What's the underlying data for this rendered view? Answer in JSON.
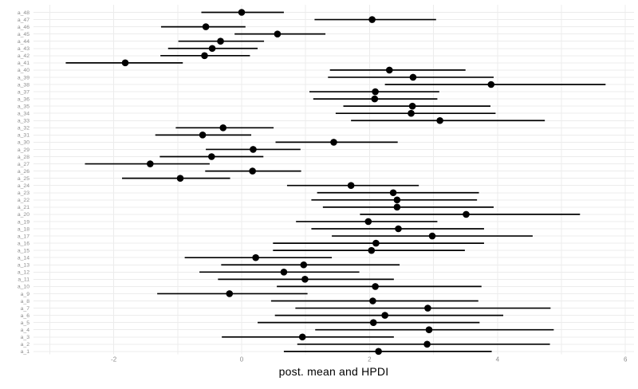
{
  "chart_data": {
    "type": "pointrange",
    "title": "",
    "xlabel": "post. mean and HPDI",
    "ylabel": "",
    "x_ticks": [
      -2,
      0,
      2,
      4,
      6
    ],
    "x_gridlines": [
      -3,
      -2,
      -1,
      0,
      1,
      2,
      3,
      4,
      5,
      6
    ],
    "xlim": [
      -3.25,
      6.13
    ],
    "legend": "none",
    "grid": "on",
    "colors": {
      "background": "#ffffff",
      "gridline": "#ececec",
      "axis_text": "#8c8c8c",
      "data": "#000000"
    },
    "params": [
      {
        "label": "a_48",
        "mean": 0.0,
        "lower": -0.63,
        "upper": 0.66
      },
      {
        "label": "a_47",
        "mean": 2.04,
        "lower": 1.14,
        "upper": 3.04
      },
      {
        "label": "a_46",
        "mean": -0.56,
        "lower": -1.26,
        "upper": 0.06
      },
      {
        "label": "a_45",
        "mean": 0.56,
        "lower": -0.11,
        "upper": 1.31
      },
      {
        "label": "a_44",
        "mean": -0.33,
        "lower": -0.99,
        "upper": 0.35
      },
      {
        "label": "a_43",
        "mean": -0.46,
        "lower": -1.15,
        "upper": 0.25
      },
      {
        "label": "a_42",
        "mean": -0.58,
        "lower": -1.27,
        "upper": 0.13
      },
      {
        "label": "a_41",
        "mean": -1.82,
        "lower": -2.75,
        "upper": -0.92
      },
      {
        "label": "a_40",
        "mean": 2.31,
        "lower": 1.38,
        "upper": 3.5
      },
      {
        "label": "a_39",
        "mean": 2.68,
        "lower": 1.35,
        "upper": 3.94
      },
      {
        "label": "a_38",
        "mean": 3.9,
        "lower": 2.24,
        "upper": 5.69
      },
      {
        "label": "a_37",
        "mean": 2.09,
        "lower": 1.06,
        "upper": 3.09
      },
      {
        "label": "a_36",
        "mean": 2.08,
        "lower": 1.12,
        "upper": 3.06
      },
      {
        "label": "a_35",
        "mean": 2.67,
        "lower": 1.59,
        "upper": 3.89
      },
      {
        "label": "a_34",
        "mean": 2.65,
        "lower": 1.47,
        "upper": 3.97
      },
      {
        "label": "a_33",
        "mean": 3.1,
        "lower": 1.71,
        "upper": 4.74
      },
      {
        "label": "a_32",
        "mean": -0.29,
        "lower": -1.03,
        "upper": 0.5
      },
      {
        "label": "a_31",
        "mean": -0.61,
        "lower": -1.35,
        "upper": 0.15
      },
      {
        "label": "a_30",
        "mean": 1.44,
        "lower": 0.53,
        "upper": 2.44
      },
      {
        "label": "a_29",
        "mean": 0.18,
        "lower": -0.56,
        "upper": 0.92
      },
      {
        "label": "a_28",
        "mean": -0.47,
        "lower": -1.28,
        "upper": 0.34
      },
      {
        "label": "a_27",
        "mean": -1.43,
        "lower": -2.45,
        "upper": -0.5
      },
      {
        "label": "a_26",
        "mean": 0.17,
        "lower": -0.57,
        "upper": 0.93
      },
      {
        "label": "a_25",
        "mean": -0.96,
        "lower": -1.87,
        "upper": -0.18
      },
      {
        "label": "a_24",
        "mean": 1.71,
        "lower": 0.71,
        "upper": 2.77
      },
      {
        "label": "a_23",
        "mean": 2.37,
        "lower": 1.18,
        "upper": 3.71
      },
      {
        "label": "a_22",
        "mean": 2.43,
        "lower": 1.09,
        "upper": 3.68
      },
      {
        "label": "a_21",
        "mean": 2.43,
        "lower": 1.27,
        "upper": 3.94
      },
      {
        "label": "a_20",
        "mean": 3.51,
        "lower": 1.85,
        "upper": 5.29
      },
      {
        "label": "a_19",
        "mean": 1.98,
        "lower": 0.85,
        "upper": 3.06
      },
      {
        "label": "a_18",
        "mean": 2.45,
        "lower": 1.09,
        "upper": 3.79
      },
      {
        "label": "a_17",
        "mean": 2.98,
        "lower": 1.41,
        "upper": 4.55
      },
      {
        "label": "a_16",
        "mean": 2.1,
        "lower": 0.49,
        "upper": 3.79
      },
      {
        "label": "a_15",
        "mean": 2.03,
        "lower": 0.49,
        "upper": 3.49
      },
      {
        "label": "a_14",
        "mean": 0.22,
        "lower": -0.89,
        "upper": 1.41
      },
      {
        "label": "a_13",
        "mean": 0.97,
        "lower": -0.32,
        "upper": 2.47
      },
      {
        "label": "a_12",
        "mean": 0.66,
        "lower": -0.66,
        "upper": 1.84
      },
      {
        "label": "a_11",
        "mean": 0.99,
        "lower": -0.37,
        "upper": 2.38
      },
      {
        "label": "a_10",
        "mean": 2.09,
        "lower": 0.55,
        "upper": 3.75
      },
      {
        "label": "a_9",
        "mean": -0.19,
        "lower": -1.32,
        "upper": 1.03
      },
      {
        "label": "a_8",
        "mean": 2.05,
        "lower": 0.46,
        "upper": 3.7
      },
      {
        "label": "a_7",
        "mean": 2.91,
        "lower": 0.84,
        "upper": 4.83
      },
      {
        "label": "a_6",
        "mean": 2.24,
        "lower": 0.52,
        "upper": 4.09
      },
      {
        "label": "a_5",
        "mean": 2.06,
        "lower": 0.25,
        "upper": 3.72
      },
      {
        "label": "a_4",
        "mean": 2.93,
        "lower": 1.15,
        "upper": 4.88
      },
      {
        "label": "a_3",
        "mean": 0.95,
        "lower": -0.31,
        "upper": 2.38
      },
      {
        "label": "a_2",
        "mean": 2.9,
        "lower": 0.87,
        "upper": 4.82
      },
      {
        "label": "a_1",
        "mean": 2.14,
        "lower": 0.66,
        "upper": 3.91
      }
    ]
  }
}
